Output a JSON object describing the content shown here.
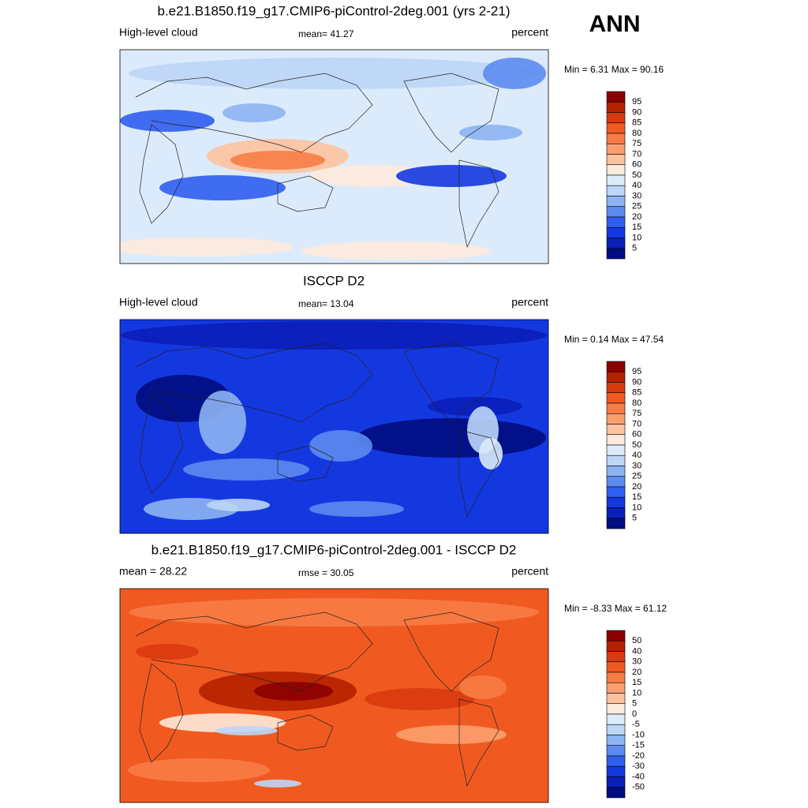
{
  "anno": "ANN",
  "panels": [
    {
      "title": "b.e21.B1850.f19_g17.CMIP6-piControl-2deg.001 (yrs 2-21)",
      "left": "High-level cloud",
      "center": "mean=  41.27",
      "right": "percent",
      "minmax": "Min =   6.31 Max =  90.16",
      "colorbar": [
        "95",
        "90",
        "85",
        "80",
        "75",
        "70",
        "60",
        "50",
        "40",
        "30",
        "25",
        "20",
        "15",
        "10",
        "5"
      ]
    },
    {
      "title": "ISCCP D2",
      "left": "High-level cloud",
      "center": "mean=  13.04",
      "right": "percent",
      "minmax": "Min =   0.14 Max =  47.54",
      "colorbar": [
        "95",
        "90",
        "85",
        "80",
        "75",
        "70",
        "60",
        "50",
        "40",
        "30",
        "25",
        "20",
        "15",
        "10",
        "5"
      ]
    },
    {
      "title": "b.e21.B1850.f19_g17.CMIP6-piControl-2deg.001 - ISCCP D2",
      "left": "mean =  28.22",
      "center": "rmse =  30.05",
      "right": "percent",
      "minmax": "Min =  -8.33 Max =  61.12",
      "colorbar": [
        "50",
        "40",
        "30",
        "20",
        "15",
        "10",
        "5",
        "0",
        "-5",
        "-10",
        "-15",
        "-20",
        "-30",
        "-40",
        "-50"
      ]
    }
  ]
}
